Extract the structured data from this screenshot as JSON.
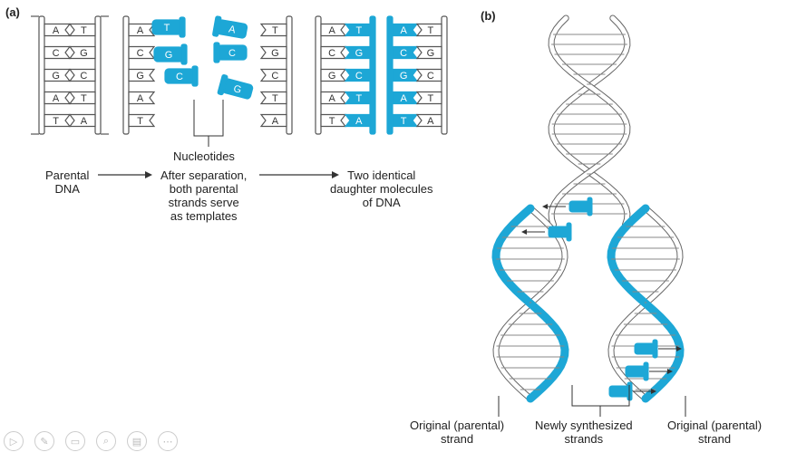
{
  "panel_a": {
    "label": "(a)",
    "parental_label": "Parental\nDNA",
    "separation_label": "After separation,\nboth parental\nstrands serve\nas templates",
    "nucleotides_label": "Nucleotides",
    "daughters_label": "Two identical\ndaughter molecules\nof DNA",
    "parental_pairs": [
      [
        "A",
        "T"
      ],
      [
        "C",
        "G"
      ],
      [
        "G",
        "C"
      ],
      [
        "A",
        "T"
      ],
      [
        "T",
        "A"
      ]
    ],
    "free_nucleotides": [
      "T",
      "G",
      "C",
      "A",
      "C",
      "G"
    ]
  },
  "panel_b": {
    "label": "(b)",
    "original_left_label": "Original (parental)\nstrand",
    "new_label": "Newly synthesized\nstrands",
    "original_right_label": "Original (parental)\nstrand"
  },
  "colors": {
    "blue": "#1da7d6",
    "line": "#555555"
  },
  "player_controls": [
    "play-icon",
    "pen-icon",
    "slides-icon",
    "zoom-icon",
    "subtitle-icon",
    "more-icon"
  ]
}
